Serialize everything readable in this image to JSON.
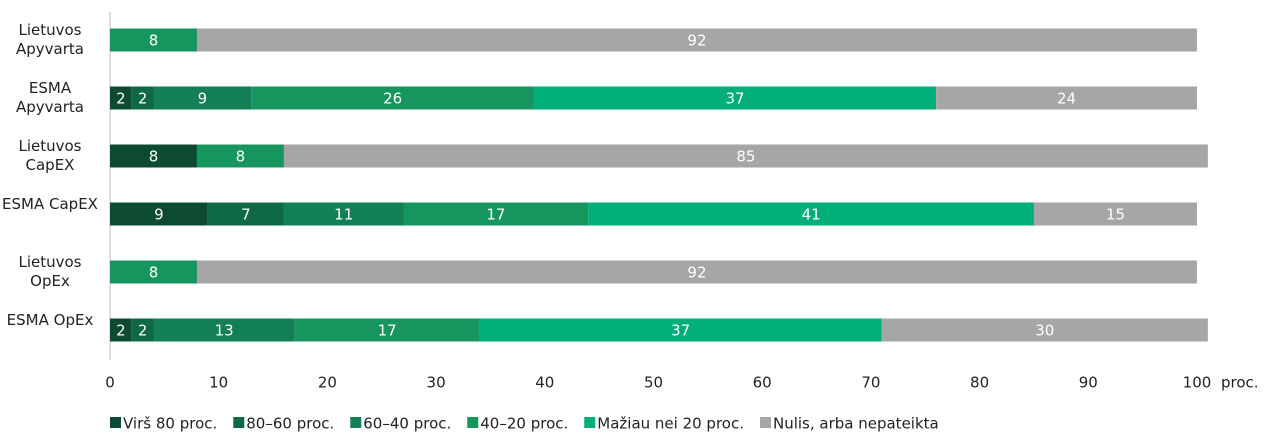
{
  "chart_data": {
    "type": "stacked_barh",
    "categories": [
      "Lietuvos Apyvarta",
      "ESMA Apyvarta",
      "Lietuvos CapEX",
      "ESMA CapEX",
      "Lietuvos OpEx",
      "ESMA OpEx"
    ],
    "series": [
      {
        "name": "Virš 80 proc.",
        "color": "#0c4a31",
        "values": [
          null,
          2,
          8,
          9,
          null,
          2
        ]
      },
      {
        "name": "80–60 proc.",
        "color": "#0e6844",
        "values": [
          null,
          2,
          null,
          7,
          null,
          2
        ]
      },
      {
        "name": "60–40 proc.",
        "color": "#127f55",
        "values": [
          null,
          9,
          null,
          11,
          null,
          13
        ]
      },
      {
        "name": "40–20 proc.",
        "color": "#16955f",
        "values": [
          8,
          26,
          8,
          17,
          8,
          17
        ]
      },
      {
        "name": "Mažiau nei 20 proc.",
        "color": "#00ae7a",
        "values": [
          null,
          37,
          null,
          41,
          null,
          37
        ]
      },
      {
        "name": "Nulis, arba nepateikta",
        "color": "#a6a6a6",
        "values": [
          92,
          24,
          85,
          15,
          92,
          30
        ]
      }
    ],
    "xlim": [
      0,
      100
    ],
    "xticks": [
      0,
      10,
      20,
      30,
      40,
      50,
      60,
      70,
      80,
      90,
      100
    ],
    "xlabel": "proc.",
    "grid": false,
    "legend": "bottom"
  }
}
